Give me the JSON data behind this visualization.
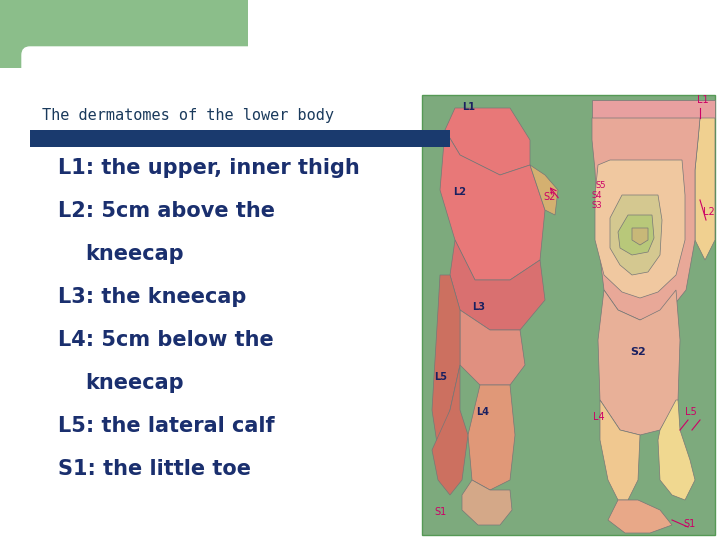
{
  "bg_outer": "#ffffff",
  "bg_green": "#8bbe8a",
  "white_box_color": "#ffffff",
  "img_bg_color": "#7daa7d",
  "title": "The dermatomes of the lower body",
  "title_color": "#1a3a5c",
  "title_fontsize": 11,
  "bar_color": "#1a3a6e",
  "bullet_lines": [
    "L1: the upper, inner thigh",
    "L2: 5cm above the",
    "kneecap",
    "L3: the kneecap",
    "L4: 5cm below the",
    "kneecap",
    "L5: the lateral calf",
    "S1: the little toe"
  ],
  "bullet_color": "#1a2f6e",
  "bullet_fontsize": 15,
  "fig_width": 7.2,
  "fig_height": 5.4,
  "dpi": 100,
  "label_color_front": "#1a2060",
  "label_color_back": "#cc0066"
}
